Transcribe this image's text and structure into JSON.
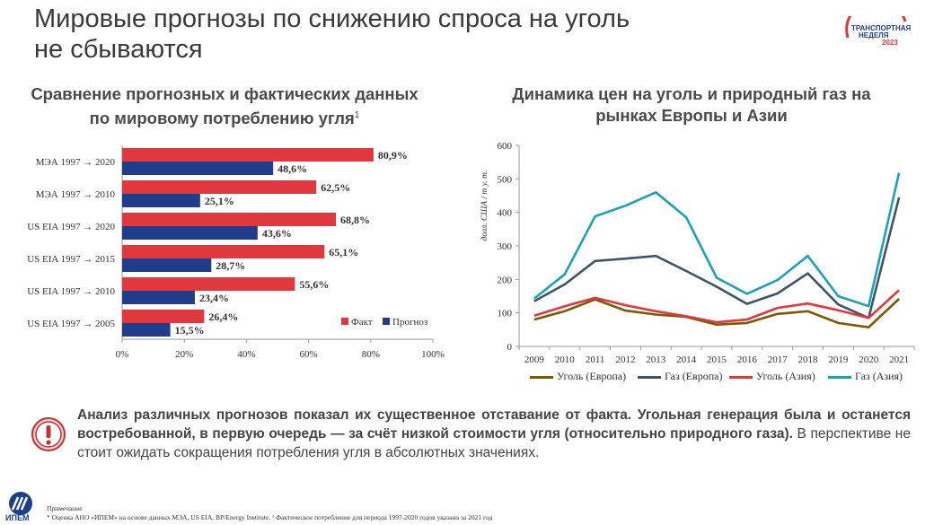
{
  "page": {
    "title_line1": "Мировые прогнозы по снижению спроса на уголь",
    "title_line2": "не сбываются",
    "logo_line1": "ТРАНСПОРТНАЯ",
    "logo_line2": "НЕДЕЛЯ",
    "logo_year": "2023"
  },
  "alert": {
    "bold_text": "Анализ различных прогнозов показал их существенное отставание от факта. Угольная генерация была и останется востребованной, в первую очередь — за счёт низкой стоимости угля (относительно природного газа).",
    "normal_text": "В перспективе не стоит ожидать сокращения потребления угля в абсолютных значениях."
  },
  "footer": {
    "logo_text": "ИПЕМ",
    "note_label": "Примечание",
    "note_text": "* Оценка АНО «ИПЕМ» на основе данных  МЭА, US EIA, BP/Energy Institute. ¹ Фактическое потребление для периода 1997-2020 годов указано за 2021 год"
  },
  "chart_data": [
    {
      "type": "bar",
      "title": "Сравнение прогнозных и фактических данных по мировому потреблению угля",
      "title_sup": "1",
      "categories": [
        "МЭА 1997 → 2020",
        "МЭА 1997 → 2010",
        "US EIA 1997 → 2020",
        "US EIA 1997 → 2015",
        "US EIA 1997 → 2010",
        "US EIA 1997 → 2005"
      ],
      "series": [
        {
          "name": "Факт",
          "color": "#e0383e",
          "values": [
            80.9,
            62.5,
            68.8,
            65.1,
            55.6,
            26.4
          ],
          "labels": [
            "80,9%",
            "62,5%",
            "68,8%",
            "65,1%",
            "55,6%",
            "26,4%"
          ]
        },
        {
          "name": "Прогноз",
          "color": "#1f3d8c",
          "values": [
            48.6,
            25.1,
            43.6,
            28.7,
            23.4,
            15.5
          ],
          "labels": [
            "48,6%",
            "25,1%",
            "43,6%",
            "28,7%",
            "23,4%",
            "15,5%"
          ]
        }
      ],
      "xlim": [
        0,
        100
      ],
      "xticks": [
        "0%",
        "20%",
        "40%",
        "60%",
        "80%",
        "100%"
      ],
      "legend": "bottom-right"
    },
    {
      "type": "line",
      "title": "Динамика цен на уголь и природный газ на рынках Европы и Азии",
      "ylabel": "долл. США / т у. т.",
      "x": [
        "2009",
        "2010",
        "2011",
        "2012",
        "2013",
        "2014",
        "2015",
        "2016",
        "2017",
        "2018",
        "2019",
        "2020",
        "2021"
      ],
      "ylim": [
        0,
        600
      ],
      "yticks": [
        "0",
        "100",
        "200",
        "300",
        "400",
        "500",
        "600"
      ],
      "series": [
        {
          "name": "Уголь (Европа)",
          "color": "#7a5a00",
          "values": [
            80,
            105,
            140,
            107,
            95,
            88,
            65,
            70,
            97,
            105,
            70,
            57,
            142
          ]
        },
        {
          "name": "Газ (Европа)",
          "color": "#3e5566",
          "values": [
            135,
            185,
            255,
            262,
            270,
            225,
            178,
            127,
            158,
            218,
            125,
            85,
            445
          ]
        },
        {
          "name": "Уголь (Азия)",
          "color": "#e0383e",
          "values": [
            92,
            120,
            145,
            123,
            105,
            90,
            72,
            80,
            115,
            128,
            108,
            85,
            168
          ]
        },
        {
          "name": "Газ (Азия)",
          "color": "#1aa3b5",
          "values": [
            143,
            215,
            388,
            420,
            460,
            385,
            205,
            157,
            198,
            270,
            150,
            120,
            518
          ]
        }
      ],
      "legend": "bottom"
    }
  ]
}
